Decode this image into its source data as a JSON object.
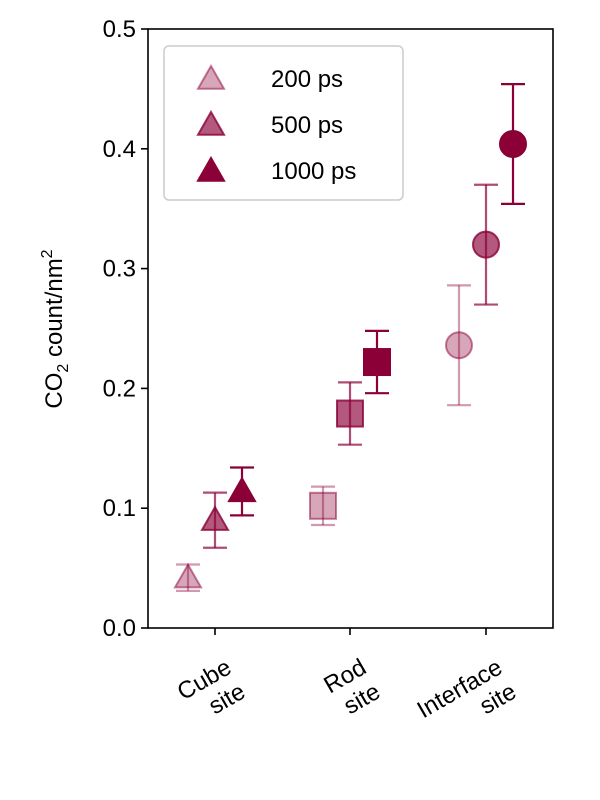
{
  "chart_data": {
    "type": "scatter",
    "title": "",
    "xlabel": "",
    "ylabel": {
      "prefix": "CO",
      "sub": "2",
      "middle": " count/nm",
      "sup": "2"
    },
    "ylim": [
      0,
      0.5
    ],
    "yticks": [
      "0.0",
      "0.1",
      "0.2",
      "0.3",
      "0.4",
      "0.5"
    ],
    "ytick_values": [
      0,
      0.1,
      0.2,
      0.3,
      0.4,
      0.5
    ],
    "categories": [
      {
        "line1": "Cube",
        "line2": "site"
      },
      {
        "line1": "Rod",
        "line2": "site"
      },
      {
        "line1": "Interface",
        "line2": "site"
      }
    ],
    "category_markers": [
      "triangle",
      "square",
      "circle"
    ],
    "series": [
      {
        "name": "200 ps",
        "color": "#8b0037",
        "alpha": 0.35,
        "values": [
          0.042,
          0.102,
          0.236
        ],
        "errors": [
          0.011,
          0.016,
          0.05
        ]
      },
      {
        "name": "500 ps",
        "color": "#8b0037",
        "alpha": 0.65,
        "values": [
          0.09,
          0.179,
          0.32
        ],
        "errors": [
          0.023,
          0.026,
          0.05
        ]
      },
      {
        "name": "1000 ps",
        "color": "#8b0037",
        "alpha": 1.0,
        "values": [
          0.114,
          0.222,
          0.404
        ],
        "errors": [
          0.02,
          0.026,
          0.05
        ]
      }
    ],
    "legend_position": "top-left",
    "grid": false
  }
}
